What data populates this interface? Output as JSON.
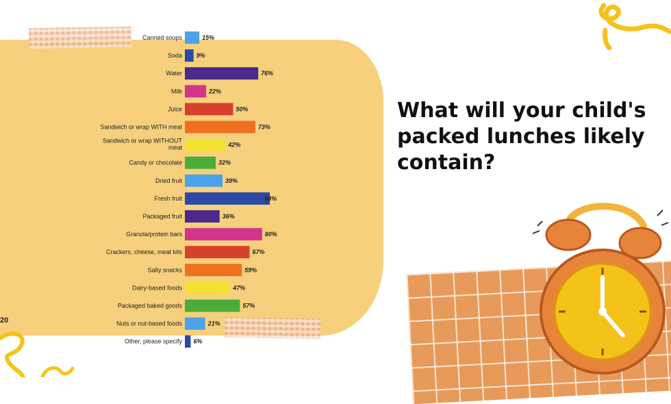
{
  "slide": {
    "page_number": "20",
    "question": "What will your child's packed lunches likely contain?"
  },
  "chart_data": {
    "type": "bar",
    "orientation": "horizontal",
    "title": "",
    "xlabel": "",
    "ylabel": "",
    "xlim": [
      0,
      100
    ],
    "grid": false,
    "value_suffix": "%",
    "categories": [
      "Canned soups",
      "Soda",
      "Water",
      "Milk",
      "Juice",
      "Sandwich or wrap WITH meat",
      "Sandwich or wrap WITHOUT meat",
      "Candy or chocolate",
      "Dried fruit",
      "Fresh fruit",
      "Packaged fruit",
      "Granola/protein bars",
      "Crackers, cheese, meat kits",
      "Salty snacks",
      "Dairy-based foods",
      "Packaged baked goods",
      "Nuts or nut-based foods",
      "Other, please specify"
    ],
    "values": [
      15,
      9,
      76,
      22,
      50,
      73,
      42,
      32,
      39,
      88,
      36,
      80,
      67,
      59,
      47,
      57,
      21,
      6
    ],
    "value_labels": [
      "15%",
      "9%",
      "76%",
      "22%",
      "50%",
      "73%",
      "42%",
      "32%",
      "39%",
      "88%",
      "36%",
      "80%",
      "67%",
      "59%",
      "47%",
      "57%",
      "21%",
      "6%"
    ],
    "colors": [
      "#4aa3e8",
      "#2b4aa6",
      "#4b2a8c",
      "#d3348c",
      "#d8402e",
      "#ef7020",
      "#f2e030",
      "#4bac3a",
      "#4aa3e8",
      "#2b4aa6",
      "#4b2a8c",
      "#d3348c",
      "#d8402e",
      "#ef7020",
      "#f2e030",
      "#4bac3a",
      "#4aa3e8",
      "#2b4aa6"
    ]
  },
  "theme": {
    "background": "#ffffff",
    "panel": "#f6d07c",
    "accent_yellow": "#f5c21a",
    "accent_orange": "#e8843a"
  }
}
